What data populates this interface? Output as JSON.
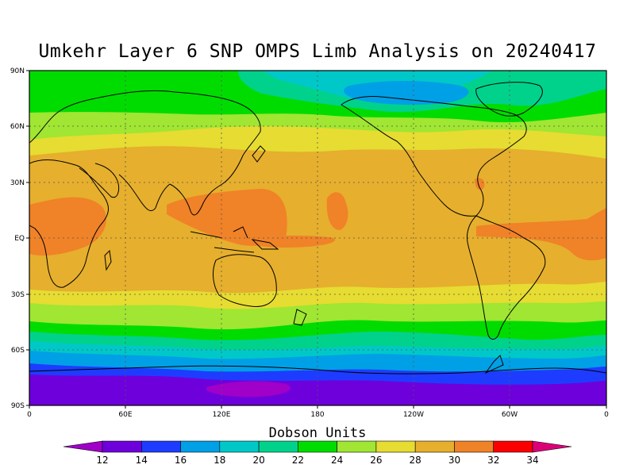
{
  "title": "Umkehr Layer 6 SNP OMPS Limb Analysis on 20240417",
  "colorbar": {
    "title": "Dobson Units",
    "ticks": [
      "12",
      "14",
      "16",
      "18",
      "20",
      "22",
      "24",
      "26",
      "28",
      "30",
      "32",
      "34"
    ],
    "colors": [
      "#a000c8",
      "#6e00dc",
      "#1e3cff",
      "#00a0e6",
      "#00c8c8",
      "#00d28c",
      "#00dc00",
      "#a0e632",
      "#e6dc32",
      "#e6af2d",
      "#f08228",
      "#fa0000",
      "#dc0078"
    ]
  },
  "axes": {
    "lat_labels": [
      "90N",
      "60N",
      "30N",
      "EQ",
      "30S",
      "60S",
      "90S"
    ],
    "lon_labels": [
      "0",
      "60E",
      "120E",
      "180",
      "120W",
      "60W",
      "0"
    ]
  },
  "legend_colors": {
    "c14": "#6e00dc",
    "c16": "#1e3cff",
    "c18": "#00a0e6",
    "c20": "#00c8c8",
    "c22": "#00d28c",
    "c24": "#00dc00",
    "c26": "#a0e632",
    "c28": "#e6dc32",
    "c30": "#e6af2d",
    "c32": "#f08228",
    "c12": "#a000c8"
  }
}
